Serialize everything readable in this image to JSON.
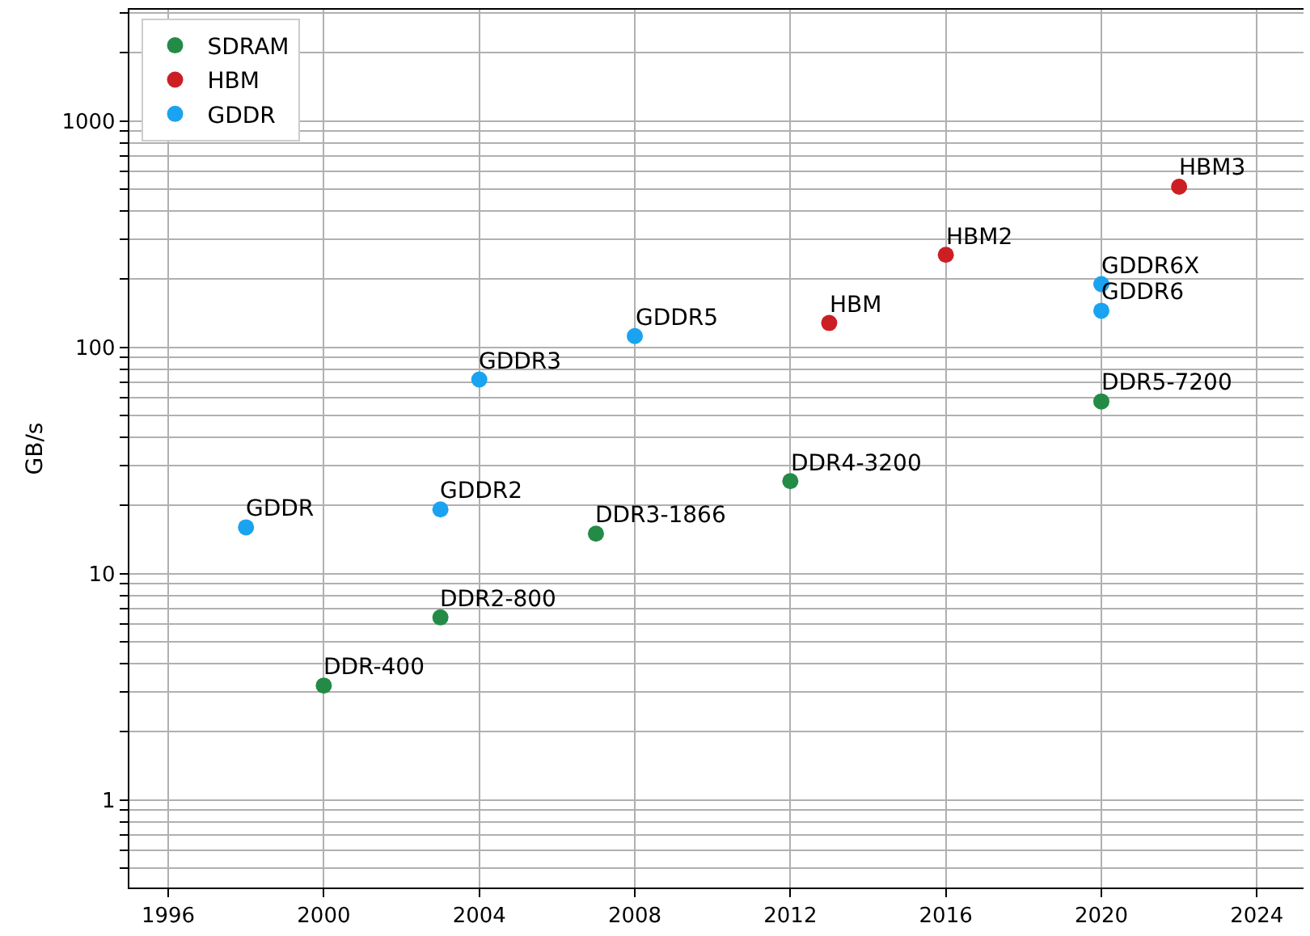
{
  "chart_data": {
    "type": "scatter",
    "ylabel": "GB/s",
    "log": "y",
    "grid": true,
    "legend": "top left",
    "marker": "circle",
    "xlim": [
      1995,
      2025.2
    ],
    "xticks": [
      1996,
      2000,
      2004,
      2008,
      2012,
      2016,
      2020,
      2024
    ],
    "ylim": [
      0.41,
      3100
    ],
    "yticks": [
      {
        "value": 0.5,
        "label": null
      },
      {
        "value": 0.6,
        "label": null
      },
      {
        "value": 0.7,
        "label": null
      },
      {
        "value": 0.8,
        "label": null
      },
      {
        "value": 0.9,
        "label": null
      },
      1,
      {
        "value": 2,
        "label": null
      },
      {
        "value": 3,
        "label": null
      },
      {
        "value": 4,
        "label": null
      },
      {
        "value": 5,
        "label": null
      },
      {
        "value": 6,
        "label": null
      },
      {
        "value": 7,
        "label": null
      },
      {
        "value": 8,
        "label": null
      },
      {
        "value": 9,
        "label": null
      },
      10,
      {
        "value": 20,
        "label": null
      },
      {
        "value": 30,
        "label": null
      },
      {
        "value": 40,
        "label": null
      },
      {
        "value": 50,
        "label": null
      },
      {
        "value": 60,
        "label": null
      },
      {
        "value": 70,
        "label": null
      },
      {
        "value": 80,
        "label": null
      },
      {
        "value": 90,
        "label": null
      },
      100,
      {
        "value": 200,
        "label": null
      },
      {
        "value": 300,
        "label": null
      },
      {
        "value": 400,
        "label": null
      },
      {
        "value": 500,
        "label": null
      },
      {
        "value": 600,
        "label": null
      },
      {
        "value": 700,
        "label": null
      },
      {
        "value": 800,
        "label": null
      },
      {
        "value": 900,
        "label": null
      },
      1000,
      {
        "value": 2000,
        "label": null
      },
      {
        "value": 3000,
        "label": null
      }
    ],
    "series": [
      {
        "name": "SDRAM",
        "color": "#238b45",
        "x": [
          2000,
          2003,
          2007,
          2012,
          2020
        ],
        "values": [
          3.2,
          6.4,
          15,
          25.6,
          57.6
        ]
      },
      {
        "name": "HBM",
        "color": "#cc1f24",
        "x": [
          2013,
          2016,
          2022
        ],
        "values": [
          128,
          256,
          512
        ]
      },
      {
        "name": "GDDR",
        "color": "#1aa3f0",
        "x": [
          1998,
          2003,
          2004,
          2008,
          2020,
          2020
        ],
        "values": [
          16,
          19.2,
          72,
          112,
          190,
          145
        ]
      }
    ],
    "annotations": [
      {
        "text": "DDR-400",
        "x": 2000,
        "y": 3.2
      },
      {
        "text": "DDR2-800",
        "x": 2003,
        "y": 6.4
      },
      {
        "text": "DDR3-1866",
        "x": 2007,
        "y": 15
      },
      {
        "text": "DDR4-3200",
        "x": 2012,
        "y": 25.6
      },
      {
        "text": "DDR5-7200",
        "x": 2020,
        "y": 57.6
      },
      {
        "text": "HBM",
        "x": 2013,
        "y": 128
      },
      {
        "text": "HBM2",
        "x": 2016,
        "y": 256
      },
      {
        "text": "HBM3",
        "x": 2022,
        "y": 512
      },
      {
        "text": "GDDR",
        "x": 1998,
        "y": 16
      },
      {
        "text": "GDDR2",
        "x": 2003,
        "y": 19.2
      },
      {
        "text": "GDDR3",
        "x": 2004,
        "y": 72
      },
      {
        "text": "GDDR5",
        "x": 2008,
        "y": 112
      },
      {
        "text": "GDDR6X",
        "x": 2020,
        "y": 190
      },
      {
        "text": "GDDR6",
        "x": 2020,
        "y": 145
      }
    ]
  }
}
